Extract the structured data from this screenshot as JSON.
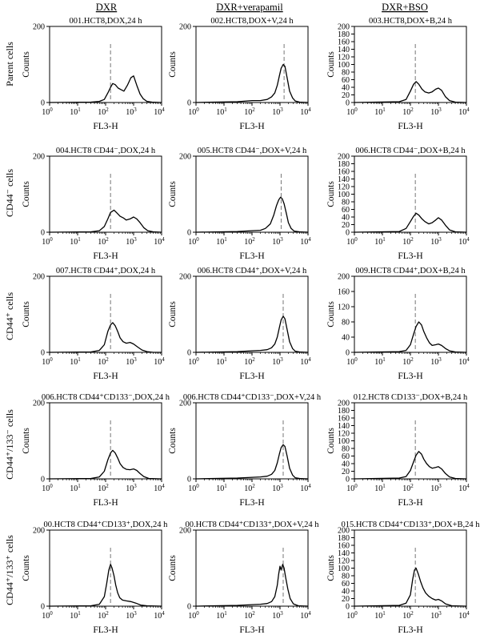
{
  "column_headers": [
    "DXR",
    "DXR+verapamil",
    "DXR+BSO"
  ],
  "row_labels": [
    "Parent cells",
    "CD44⁻ cells",
    "CD44⁺ cells",
    "CD44⁺/133⁻ cells",
    "CD44⁺/133⁺ cells"
  ],
  "chart_data": [
    {
      "type": "area",
      "title": "001.HCT8,DOX,24 h",
      "xlabel": "FL3-H",
      "ylabel": "Counts",
      "xscale": "log",
      "xlim": [
        1,
        10000
      ],
      "ylim": [
        0,
        200
      ],
      "yticks": [
        0,
        200
      ],
      "marker_x": 150,
      "x": [
        1,
        30,
        60,
        90,
        120,
        150,
        180,
        220,
        280,
        350,
        450,
        600,
        800,
        1000,
        1300,
        1700,
        2200,
        3000,
        4500,
        10000
      ],
      "y": [
        0,
        1,
        3,
        8,
        25,
        40,
        50,
        47,
        38,
        34,
        30,
        45,
        65,
        70,
        45,
        22,
        10,
        3,
        1,
        0
      ]
    },
    {
      "type": "area",
      "title": "002.HCT8,DOX+V,24 h",
      "xlabel": "FL3-H",
      "ylabel": "Counts",
      "xscale": "log",
      "xlim": [
        1,
        10000
      ],
      "ylim": [
        0,
        200
      ],
      "yticks": [
        0,
        200
      ],
      "marker_x": 1400,
      "x": [
        1,
        30,
        100,
        200,
        350,
        500,
        650,
        800,
        950,
        1100,
        1300,
        1500,
        1800,
        2200,
        2800,
        3500,
        5000,
        10000
      ],
      "y": [
        0,
        2,
        5,
        5,
        8,
        15,
        25,
        45,
        70,
        90,
        100,
        95,
        65,
        30,
        12,
        4,
        1,
        0
      ]
    },
    {
      "type": "area",
      "title": "003.HCT8,DOX+B,24 h",
      "xlabel": "FL3-H",
      "ylabel": "Counts",
      "xscale": "log",
      "xlim": [
        1,
        10000
      ],
      "ylim": [
        0,
        200
      ],
      "yticks": [
        0,
        20,
        40,
        60,
        80,
        100,
        120,
        140,
        160,
        180,
        200
      ],
      "marker_x": 150,
      "x": [
        1,
        40,
        70,
        100,
        130,
        160,
        200,
        260,
        330,
        450,
        600,
        800,
        1000,
        1300,
        1800,
        2500,
        4000,
        10000
      ],
      "y": [
        0,
        2,
        8,
        30,
        48,
        55,
        48,
        35,
        28,
        25,
        28,
        35,
        38,
        32,
        15,
        5,
        1,
        0
      ]
    },
    {
      "type": "area",
      "title": "004.HCT8 CD44⁻,DOX,24 h",
      "xlabel": "FL3-H",
      "ylabel": "Counts",
      "xscale": "log",
      "xlim": [
        1,
        10000
      ],
      "ylim": [
        0,
        200
      ],
      "yticks": [
        0,
        200
      ],
      "marker_x": 150,
      "x": [
        1,
        30,
        60,
        90,
        120,
        150,
        200,
        260,
        330,
        420,
        550,
        750,
        1000,
        1300,
        1700,
        2300,
        3200,
        5000,
        10000
      ],
      "y": [
        0,
        1,
        4,
        15,
        35,
        52,
        58,
        50,
        42,
        38,
        32,
        35,
        40,
        35,
        25,
        12,
        4,
        1,
        0
      ]
    },
    {
      "type": "area",
      "title": "005.HCT8 CD44⁻,DOX+V,24 h",
      "xlabel": "FL3-H",
      "ylabel": "Counts",
      "xscale": "log",
      "xlim": [
        1,
        10000
      ],
      "ylim": [
        0,
        200
      ],
      "yticks": [
        0,
        200
      ],
      "marker_x": 1100,
      "x": [
        1,
        30,
        100,
        200,
        300,
        450,
        600,
        750,
        900,
        1050,
        1200,
        1400,
        1700,
        2000,
        2500,
        3200,
        5000,
        10000
      ],
      "y": [
        0,
        2,
        4,
        5,
        10,
        22,
        45,
        70,
        85,
        92,
        88,
        75,
        48,
        25,
        10,
        3,
        1,
        0
      ]
    },
    {
      "type": "area",
      "title": "006.HCT8 CD44⁻,DOX+B,24 h",
      "xlabel": "FL3-H",
      "ylabel": "Counts",
      "xscale": "log",
      "xlim": [
        1,
        10000
      ],
      "ylim": [
        0,
        200
      ],
      "yticks": [
        0,
        20,
        40,
        60,
        80,
        100,
        120,
        140,
        160,
        180,
        200
      ],
      "marker_x": 150,
      "x": [
        1,
        40,
        70,
        100,
        130,
        160,
        200,
        260,
        330,
        450,
        600,
        800,
        1000,
        1300,
        1800,
        2500,
        4000,
        10000
      ],
      "y": [
        0,
        2,
        10,
        28,
        42,
        50,
        45,
        35,
        28,
        22,
        25,
        32,
        38,
        32,
        18,
        6,
        1,
        0
      ]
    },
    {
      "type": "area",
      "title": "007.HCT8 CD44⁺,DOX,24 h",
      "xlabel": "FL3-H",
      "ylabel": "Counts",
      "xscale": "log",
      "xlim": [
        1,
        10000
      ],
      "ylim": [
        0,
        200
      ],
      "yticks": [
        0,
        200
      ],
      "marker_x": 150,
      "x": [
        1,
        30,
        60,
        90,
        120,
        150,
        180,
        220,
        270,
        330,
        420,
        550,
        750,
        1000,
        1400,
        2000,
        3000,
        5000,
        10000
      ],
      "y": [
        0,
        1,
        5,
        20,
        55,
        72,
        78,
        70,
        55,
        38,
        28,
        24,
        26,
        22,
        14,
        6,
        2,
        0,
        0
      ]
    },
    {
      "type": "area",
      "title": "006.HCT8 CD44⁺,DOX+V,24 h",
      "xlabel": "FL3-H",
      "ylabel": "Counts",
      "xscale": "log",
      "xlim": [
        1,
        10000
      ],
      "ylim": [
        0,
        200
      ],
      "yticks": [
        0,
        200
      ],
      "marker_x": 1300,
      "x": [
        1,
        30,
        100,
        200,
        350,
        500,
        650,
        800,
        950,
        1100,
        1300,
        1500,
        1800,
        2200,
        2800,
        3500,
        5000,
        10000
      ],
      "y": [
        0,
        2,
        4,
        5,
        7,
        12,
        22,
        40,
        65,
        85,
        95,
        88,
        60,
        28,
        10,
        3,
        1,
        0
      ]
    },
    {
      "type": "area",
      "title": "009.HCT8 CD44⁺,DOX+B,24 h",
      "xlabel": "FL3-H",
      "ylabel": "Counts",
      "xscale": "log",
      "xlim": [
        1,
        10000
      ],
      "ylim": [
        0,
        200
      ],
      "yticks": [
        0,
        40,
        80,
        120,
        160,
        200
      ],
      "marker_x": 150,
      "x": [
        1,
        40,
        70,
        100,
        130,
        160,
        200,
        250,
        300,
        380,
        480,
        600,
        800,
        1000,
        1300,
        1800,
        2500,
        4000,
        10000
      ],
      "y": [
        0,
        2,
        5,
        20,
        48,
        68,
        80,
        72,
        55,
        38,
        25,
        18,
        20,
        22,
        18,
        10,
        4,
        1,
        0
      ]
    },
    {
      "type": "area",
      "title": "006.HCT8 CD44⁺CD133⁻,DOX,24 h",
      "xlabel": "FL3-H",
      "ylabel": "Counts",
      "xscale": "log",
      "xlim": [
        1,
        10000
      ],
      "ylim": [
        0,
        200
      ],
      "yticks": [
        0,
        200
      ],
      "marker_x": 150,
      "x": [
        1,
        30,
        60,
        90,
        120,
        150,
        180,
        220,
        270,
        330,
        420,
        550,
        750,
        1000,
        1300,
        1700,
        2300,
        3500,
        10000
      ],
      "y": [
        0,
        1,
        5,
        20,
        50,
        68,
        75,
        68,
        55,
        40,
        30,
        25,
        24,
        26,
        22,
        14,
        6,
        1,
        0
      ]
    },
    {
      "type": "area",
      "title": "006.HCT8 CD44⁺CD133⁻,DOX+V,24 h",
      "xlabel": "FL3-H",
      "ylabel": "Counts",
      "xscale": "log",
      "xlim": [
        1,
        10000
      ],
      "ylim": [
        0,
        200
      ],
      "yticks": [
        0,
        200
      ],
      "marker_x": 1300,
      "x": [
        1,
        30,
        100,
        200,
        350,
        500,
        650,
        800,
        950,
        1100,
        1300,
        1500,
        1800,
        2200,
        2800,
        3500,
        5000,
        10000
      ],
      "y": [
        0,
        2,
        4,
        5,
        7,
        12,
        22,
        42,
        65,
        82,
        90,
        85,
        60,
        28,
        10,
        3,
        1,
        0
      ]
    },
    {
      "type": "area",
      "title": "012.HCT8 CD133⁻,DOX+B,24 h",
      "xlabel": "FL3-H",
      "ylabel": "Counts",
      "xscale": "log",
      "xlim": [
        1,
        10000
      ],
      "ylim": [
        0,
        200
      ],
      "yticks": [
        0,
        20,
        40,
        60,
        80,
        100,
        120,
        140,
        160,
        180,
        200
      ],
      "marker_x": 150,
      "x": [
        1,
        40,
        70,
        100,
        130,
        160,
        200,
        250,
        300,
        380,
        480,
        600,
        800,
        1000,
        1300,
        1800,
        2500,
        4000,
        10000
      ],
      "y": [
        0,
        2,
        6,
        22,
        45,
        62,
        72,
        65,
        52,
        40,
        32,
        28,
        30,
        32,
        26,
        14,
        5,
        1,
        0
      ]
    },
    {
      "type": "area",
      "title": "00.HCT8 CD44⁺CD133⁺,DOX,24 h",
      "xlabel": "FL3-H",
      "ylabel": "Counts",
      "xscale": "log",
      "xlim": [
        1,
        10000
      ],
      "ylim": [
        0,
        200
      ],
      "yticks": [
        0,
        200
      ],
      "marker_x": 150,
      "x": [
        1,
        30,
        60,
        90,
        110,
        130,
        150,
        170,
        200,
        230,
        270,
        320,
        400,
        550,
        800,
        1200,
        1800,
        3000,
        10000
      ],
      "y": [
        0,
        1,
        5,
        25,
        60,
        95,
        110,
        100,
        80,
        55,
        35,
        22,
        16,
        14,
        12,
        8,
        3,
        1,
        0
      ]
    },
    {
      "type": "area",
      "title": "00.HCT8 CD44⁺CD133⁺,DOX+V,24 h",
      "xlabel": "FL3-H",
      "ylabel": "Counts",
      "xscale": "log",
      "xlim": [
        1,
        10000
      ],
      "ylim": [
        0,
        200
      ],
      "yticks": [
        0,
        200
      ],
      "marker_x": 1300,
      "x": [
        1,
        30,
        100,
        200,
        350,
        500,
        650,
        800,
        900,
        1000,
        1100,
        1250,
        1400,
        1600,
        1900,
        2300,
        3000,
        4500,
        10000
      ],
      "y": [
        0,
        2,
        4,
        5,
        7,
        12,
        25,
        55,
        85,
        105,
        95,
        110,
        100,
        75,
        45,
        20,
        6,
        1,
        0
      ]
    },
    {
      "type": "area",
      "title": "015.HCT8 CD44⁺CD133⁺,DOX+B,24 h",
      "xlabel": "FL3-H",
      "ylabel": "Counts",
      "xscale": "log",
      "xlim": [
        1,
        10000
      ],
      "ylim": [
        0,
        200
      ],
      "yticks": [
        0,
        20,
        40,
        60,
        80,
        100,
        120,
        140,
        160,
        180,
        200
      ],
      "marker_x": 150,
      "x": [
        1,
        40,
        70,
        100,
        120,
        140,
        160,
        190,
        230,
        280,
        350,
        450,
        600,
        800,
        1000,
        1300,
        1800,
        3000,
        10000
      ],
      "y": [
        0,
        2,
        8,
        30,
        70,
        95,
        100,
        85,
        65,
        48,
        35,
        26,
        20,
        16,
        18,
        14,
        6,
        1,
        0
      ]
    }
  ]
}
